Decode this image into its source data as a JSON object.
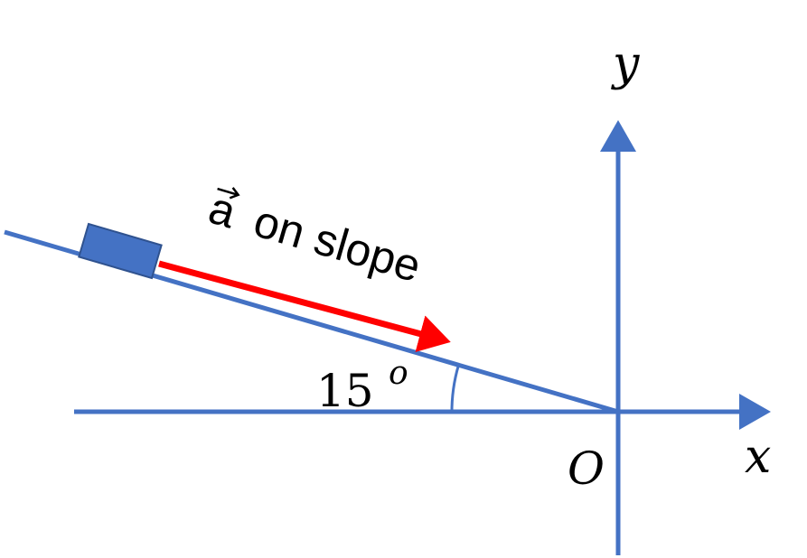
{
  "labels": {
    "y_axis": "y",
    "x_axis": "x",
    "origin": "O",
    "angle": "15",
    "angle_unit": "o",
    "vector": "a",
    "vector_text": "on slope"
  }
}
